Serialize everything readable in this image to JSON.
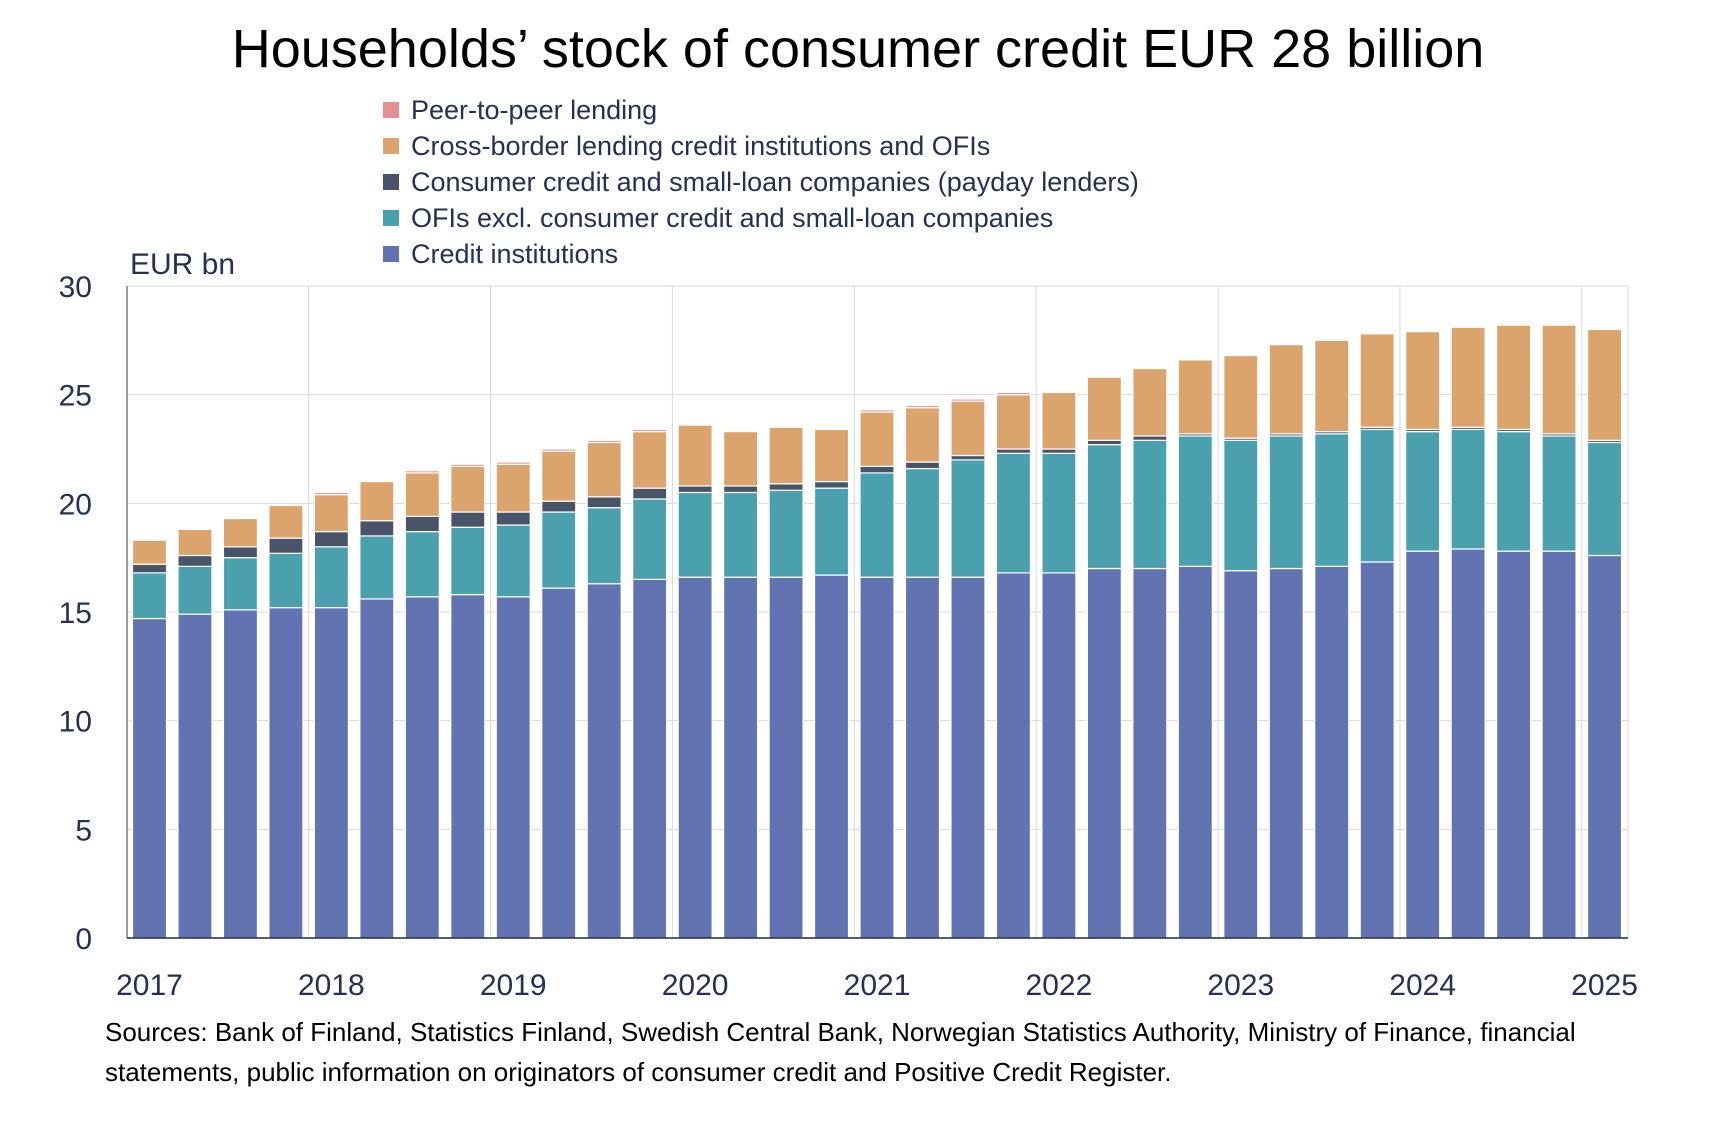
{
  "chart_data": {
    "type": "bar",
    "stacked": true,
    "title": "Households’ stock of consumer credit EUR 28 billion",
    "unit_label": "EUR bn",
    "ylim": [
      0,
      30
    ],
    "yticks": [
      0,
      5,
      10,
      15,
      20,
      25,
      30
    ],
    "grid": true,
    "legend_position": "top",
    "xtick_labels": [
      "2017",
      "2018",
      "2019",
      "2020",
      "2021",
      "2022",
      "2023",
      "2024",
      "2025"
    ],
    "categories": [
      "2017Q1",
      "2017Q2",
      "2017Q3",
      "2017Q4",
      "2018Q1",
      "2018Q2",
      "2018Q3",
      "2018Q4",
      "2019Q1",
      "2019Q2",
      "2019Q3",
      "2019Q4",
      "2020Q1",
      "2020Q2",
      "2020Q3",
      "2020Q4",
      "2021Q1",
      "2021Q2",
      "2021Q3",
      "2021Q4",
      "2022Q1",
      "2022Q2",
      "2022Q3",
      "2022Q4",
      "2023Q1",
      "2023Q2",
      "2023Q3",
      "2023Q4",
      "2024Q1",
      "2024Q2",
      "2024Q3",
      "2024Q4",
      "2025Q1"
    ],
    "series": [
      {
        "name": "Credit institutions",
        "color": "#6174b1",
        "values": [
          14.7,
          14.9,
          15.1,
          15.2,
          15.2,
          15.6,
          15.7,
          15.8,
          15.7,
          16.1,
          16.3,
          16.5,
          16.6,
          16.6,
          16.6,
          16.7,
          16.6,
          16.6,
          16.6,
          16.8,
          16.8,
          17.0,
          17.0,
          17.1,
          16.9,
          17.0,
          17.1,
          17.3,
          17.8,
          17.9,
          17.8,
          17.8,
          17.6
        ]
      },
      {
        "name": "OFIs excl. consumer credit and small-loan companies",
        "color": "#4aa1ad",
        "values": [
          2.1,
          2.2,
          2.4,
          2.5,
          2.8,
          2.9,
          3.0,
          3.1,
          3.3,
          3.5,
          3.5,
          3.7,
          3.9,
          3.9,
          4.0,
          4.0,
          4.8,
          5.0,
          5.4,
          5.5,
          5.5,
          5.7,
          5.9,
          6.0,
          6.0,
          6.1,
          6.1,
          6.1,
          5.5,
          5.5,
          5.5,
          5.3,
          5.2
        ]
      },
      {
        "name": "Consumer credit and small-loan companies (payday lenders)",
        "color": "#4a5468",
        "values": [
          0.4,
          0.5,
          0.5,
          0.7,
          0.7,
          0.7,
          0.7,
          0.7,
          0.6,
          0.5,
          0.5,
          0.5,
          0.3,
          0.3,
          0.3,
          0.3,
          0.3,
          0.3,
          0.2,
          0.2,
          0.2,
          0.2,
          0.2,
          0.1,
          0.1,
          0.1,
          0.1,
          0.1,
          0.1,
          0.1,
          0.1,
          0.1,
          0.1
        ]
      },
      {
        "name": "Cross-border lending credit institutions and OFIs",
        "color": "#dba46c",
        "values": [
          1.1,
          1.2,
          1.3,
          1.5,
          1.7,
          1.8,
          2.0,
          2.1,
          2.2,
          2.3,
          2.5,
          2.6,
          2.8,
          2.5,
          2.6,
          2.4,
          2.5,
          2.5,
          2.5,
          2.5,
          2.6,
          2.9,
          3.1,
          3.4,
          3.8,
          4.1,
          4.2,
          4.3,
          4.5,
          4.6,
          4.8,
          5.0,
          5.1
        ]
      },
      {
        "name": "Peer-to-peer lending",
        "color": "#e39193",
        "values": [
          0.0,
          0.0,
          0.0,
          0.0,
          0.1,
          0.0,
          0.1,
          0.1,
          0.1,
          0.1,
          0.1,
          0.1,
          0.0,
          0.0,
          0.0,
          0.0,
          0.1,
          0.1,
          0.1,
          0.1,
          0.0,
          0.0,
          0.0,
          0.0,
          0.0,
          0.0,
          0.0,
          0.0,
          0.0,
          0.0,
          0.0,
          0.0,
          0.0
        ]
      }
    ],
    "legend_order": [
      4,
      3,
      2,
      1,
      0
    ]
  },
  "source_text": "Sources: Bank of Finland, Statistics Finland, Swedish Central Bank, Norwegian Statistics Authority, Ministry of Finance, financial statements, public information on originators of consumer credit and Positive Credit Register."
}
